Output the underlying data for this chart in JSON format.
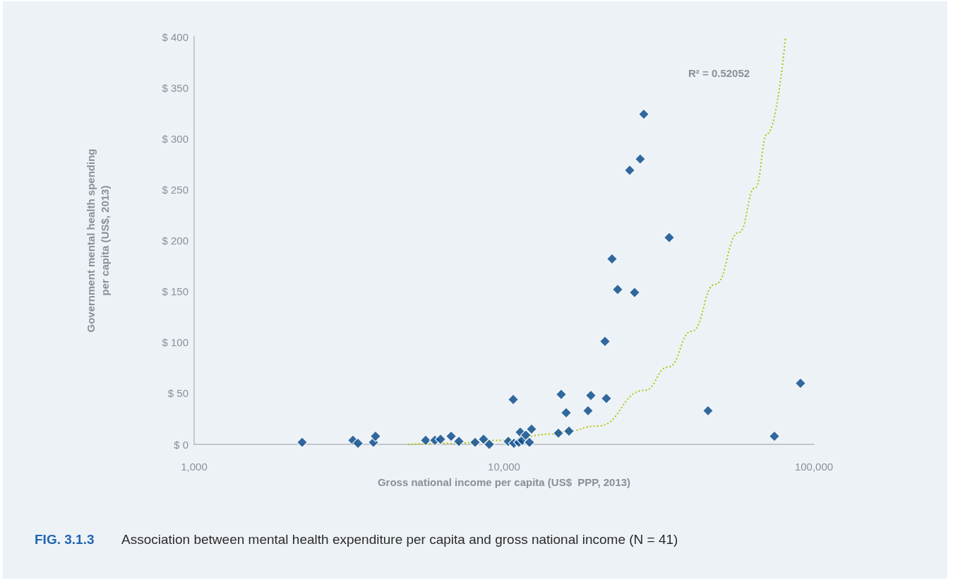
{
  "chart_data": {
    "type": "scatter",
    "title": "FIG. 3.1.3",
    "subtitle": "Association between mental health expenditure per capita and gross national income (N = 41)",
    "xlabel": "Gross national income per capita (US$  PPP, 2013)",
    "ylabel": "Government mental health spending\nper capita (US$, 2013)",
    "log": "x",
    "xlim": [
      1000,
      100000
    ],
    "xticks": [
      {
        "value": 1000,
        "label": "1,000"
      },
      {
        "value": 10000,
        "label": "10,000"
      },
      {
        "value": 100000,
        "label": "100,000"
      }
    ],
    "ylim": [
      0,
      400
    ],
    "yticks": [
      {
        "value": 0,
        "label": "$ 0"
      },
      {
        "value": 50,
        "label": "$ 50"
      },
      {
        "value": 100,
        "label": "$ 100"
      },
      {
        "value": 150,
        "label": "$ 150"
      },
      {
        "value": 200,
        "label": "$ 200"
      },
      {
        "value": 250,
        "label": "$ 250"
      },
      {
        "value": 300,
        "label": "$ 300"
      },
      {
        "value": 350,
        "label": "$ 350"
      },
      {
        "value": 400,
        "label": "$ 400"
      }
    ],
    "marker": "diamond",
    "annotations": [
      "R² = 0.52052"
    ],
    "series": [
      {
        "color": "#004587",
        "x": [
          2231,
          3254,
          3378,
          3790,
          3849,
          5587,
          5981,
          6237,
          6749,
          7150,
          8065,
          8588,
          8960,
          10320,
          10706,
          10763,
          11164,
          11282,
          11460,
          11767,
          12078,
          12270,
          14976,
          15290,
          15866,
          16200,
          18668,
          19060,
          21170,
          21390,
          22310,
          23260,
          25440,
          26380,
          27510,
          28250,
          34120,
          45530,
          74540,
          90500
        ],
        "values": [
          2,
          4,
          1,
          2,
          8,
          4,
          4,
          5,
          8,
          3,
          2,
          5,
          0,
          3,
          44,
          1,
          2,
          12,
          4,
          9,
          2,
          15,
          11,
          49,
          31,
          13,
          33,
          48,
          101,
          45,
          182,
          152,
          269,
          149,
          280,
          324,
          203,
          33,
          8,
          60
        ]
      },
      {
        "type": "line",
        "color": "#b5c200",
        "line_style": "dotted",
        "marker": "none",
        "x": [
          4900,
          6540,
          10160,
          14140,
          15700,
          20090,
          28400,
          33950,
          40360,
          47990,
          57350,
          64700,
          70740,
          81000
        ],
        "values": [
          0,
          1,
          4,
          10,
          12.5,
          18,
          53,
          76,
          111,
          157,
          208,
          252,
          305,
          400
        ]
      }
    ]
  }
}
